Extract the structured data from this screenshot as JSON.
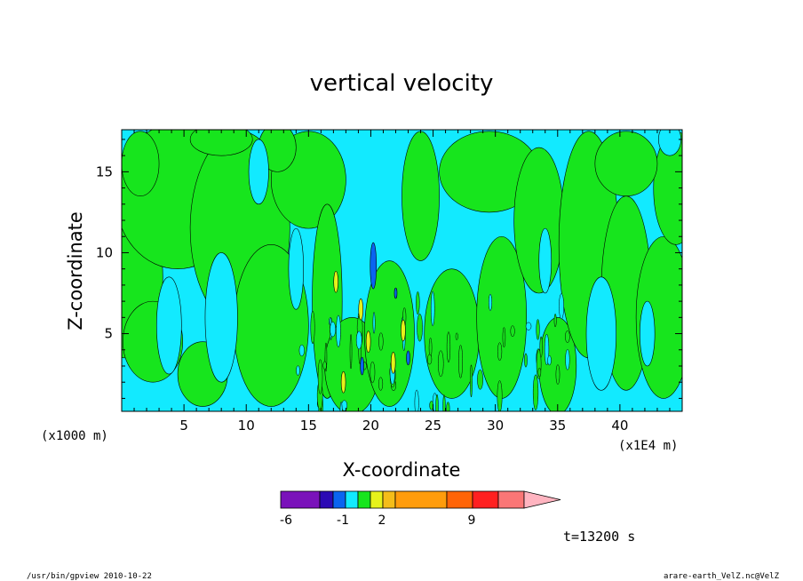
{
  "chart_data": {
    "type": "heatmap",
    "title": "vertical velocity",
    "xlabel": "X-coordinate",
    "ylabel": "Z-coordinate",
    "x_unit": "(x1E4 m)",
    "y_unit": "(x1000 m)",
    "xlim": [
      0,
      45
    ],
    "ylim": [
      0.2,
      17.6
    ],
    "x_ticks": [
      "5",
      "10",
      "15",
      "20",
      "25",
      "30",
      "35",
      "40"
    ],
    "y_ticks": [
      "5",
      "10",
      "15"
    ],
    "colorbar": {
      "colors": [
        "#7a12ba",
        "#2c0ab4",
        "#0a64f0",
        "#12eaff",
        "#17e51d",
        "#e6f21a",
        "#f4bd19",
        "#ff9c0c",
        "#ff6407",
        "#ff2020",
        "#fa7676",
        "#ffb4c0"
      ],
      "tick_labels": [
        "-6",
        "-1",
        "2",
        "9"
      ]
    },
    "time_label": "t=13200 s",
    "footer_left": "/usr/bin/gpview   2010-10-22",
    "footer_right": "arare-earth_VelZ.nc@VelZ"
  }
}
